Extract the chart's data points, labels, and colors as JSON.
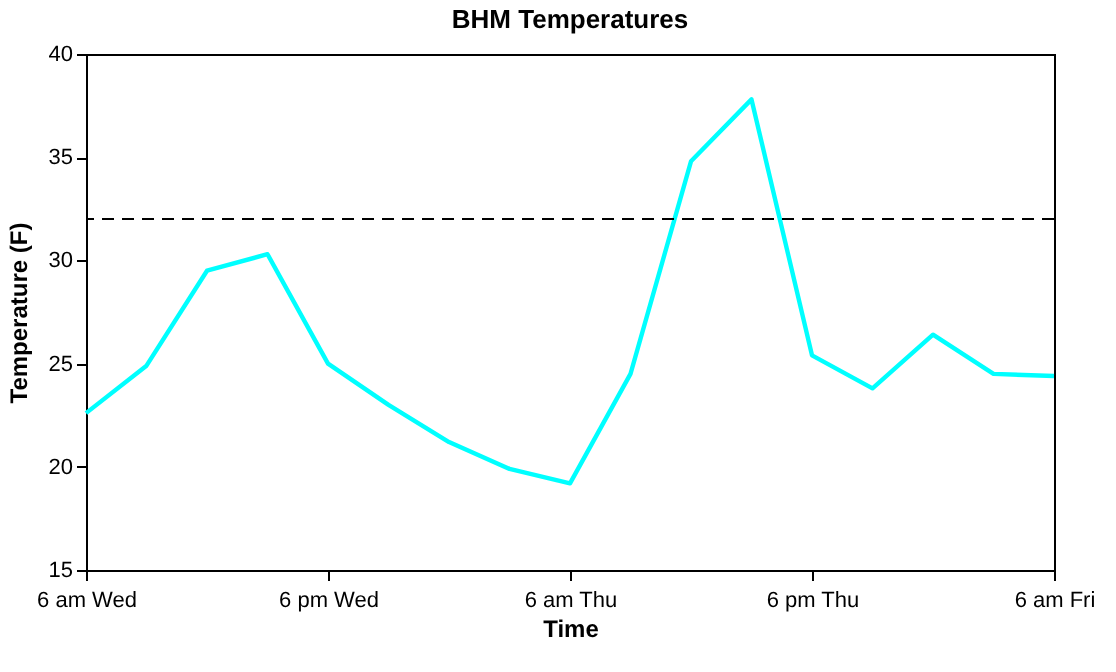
{
  "chart_data": {
    "type": "line",
    "title": "BHM Temperatures",
    "xlabel": "Time",
    "ylabel": "Temperature (F)",
    "categories": [
      "6 am Wed",
      null,
      null,
      null,
      "6 pm Wed",
      null,
      null,
      null,
      "6 am Thu",
      null,
      null,
      null,
      "6 pm Thu",
      null,
      null,
      null,
      "6 am Fri"
    ],
    "series": [
      {
        "color": "#00ffff",
        "values": [
          22.6,
          24.9,
          29.5,
          30.3,
          25.0,
          23.0,
          21.2,
          19.9,
          19.2,
          24.5,
          34.8,
          37.8,
          25.4,
          23.8,
          26.4,
          24.5,
          24.4
        ]
      }
    ],
    "ylim": [
      15,
      40
    ],
    "yticks": [
      15,
      20,
      25,
      30,
      35,
      40
    ],
    "ref_lines": [
      {
        "axis": "y",
        "value": 32,
        "color": "#000000",
        "line_style": "dashed"
      }
    ],
    "line_style": "solid",
    "grid": false
  }
}
